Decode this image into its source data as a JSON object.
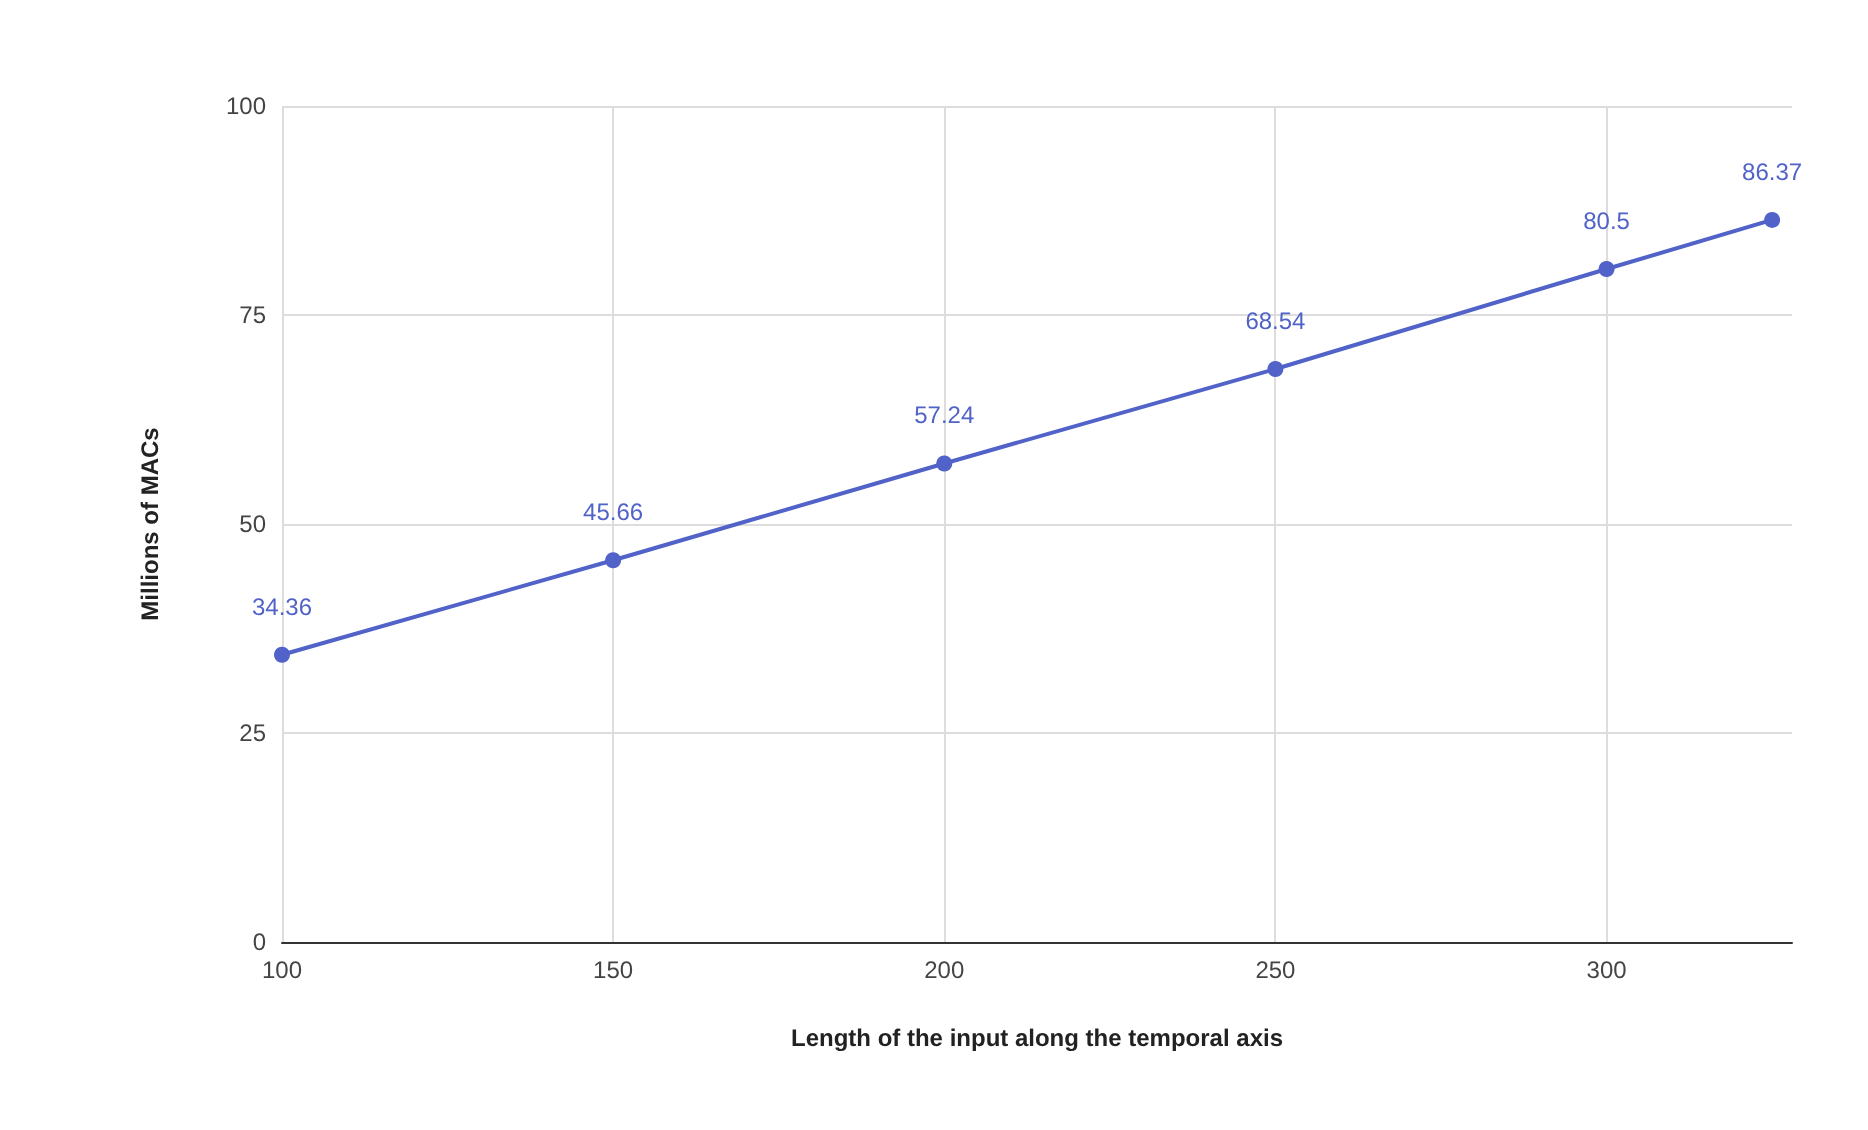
{
  "chart_data": {
    "type": "line",
    "xlabel": "Length of the input along the temporal axis",
    "ylabel": "Millions of MACs",
    "x": [
      100,
      150,
      200,
      250,
      300,
      325
    ],
    "series": [
      {
        "color": "#5162c8",
        "values": [
          34.36,
          45.66,
          57.24,
          68.54,
          80.5,
          86.37
        ]
      }
    ],
    "xlim": [
      100,
      328
    ],
    "xticks": [
      100,
      150,
      200,
      250,
      300
    ],
    "ylim": [
      0,
      100
    ],
    "yticks": [
      0,
      25,
      50,
      75,
      100
    ],
    "grid": true,
    "data_labels": true,
    "marker": "circle",
    "line_style": "solid"
  }
}
